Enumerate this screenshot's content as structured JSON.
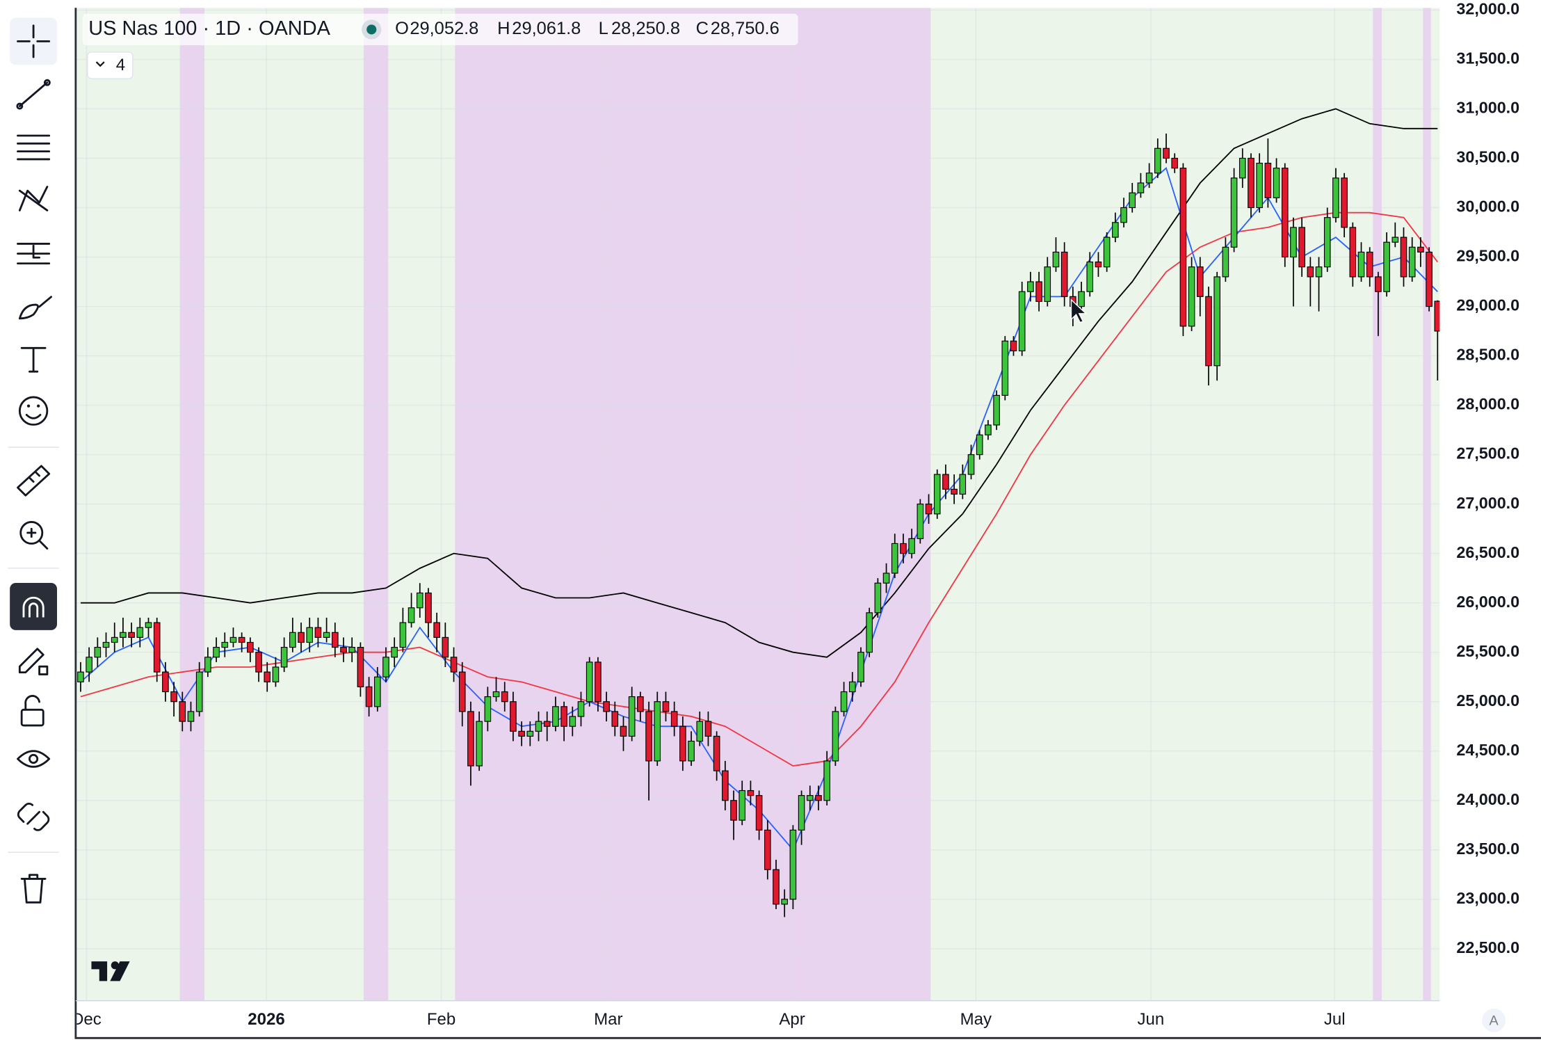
{
  "header": {
    "symbol": "US Nas 100 · 1D · OANDA",
    "open_label": "O",
    "open": "29,052.8",
    "high_label": "H",
    "high": "29,061.8",
    "low_label": "L",
    "low": "28,250.8",
    "close_label": "C",
    "close": "28,750.6",
    "indicators_count": "4"
  },
  "chart_data": {
    "type": "candlestick",
    "candles": [
      [
        25200,
        25400,
        25100,
        25300
      ],
      [
        25300,
        25550,
        25200,
        25450
      ],
      [
        25450,
        25650,
        25350,
        25550
      ],
      [
        25550,
        25700,
        25450,
        25600
      ],
      [
        25600,
        25800,
        25500,
        25650
      ],
      [
        25650,
        25850,
        25550,
        25700
      ],
      [
        25700,
        25800,
        25550,
        25650
      ],
      [
        25650,
        25850,
        25550,
        25750
      ],
      [
        25750,
        25850,
        25650,
        25800
      ],
      [
        25800,
        25850,
        25200,
        25300
      ],
      [
        25300,
        25400,
        25000,
        25100
      ],
      [
        25100,
        25200,
        24850,
        25000
      ],
      [
        25000,
        25100,
        24700,
        24800
      ],
      [
        24800,
        25000,
        24700,
        24900
      ],
      [
        24900,
        25400,
        24850,
        25300
      ],
      [
        25300,
        25550,
        25250,
        25450
      ],
      [
        25450,
        25650,
        25400,
        25550
      ],
      [
        25550,
        25700,
        25450,
        25600
      ],
      [
        25600,
        25750,
        25550,
        25650
      ],
      [
        25650,
        25700,
        25500,
        25600
      ],
      [
        25600,
        25650,
        25400,
        25500
      ],
      [
        25500,
        25550,
        25200,
        25300
      ],
      [
        25300,
        25400,
        25100,
        25200
      ],
      [
        25200,
        25450,
        25150,
        25350
      ],
      [
        25350,
        25650,
        25300,
        25550
      ],
      [
        25550,
        25850,
        25500,
        25700
      ],
      [
        25700,
        25800,
        25500,
        25600
      ],
      [
        25600,
        25850,
        25500,
        25750
      ],
      [
        25750,
        25850,
        25550,
        25650
      ],
      [
        25650,
        25850,
        25600,
        25700
      ],
      [
        25700,
        25800,
        25450,
        25550
      ],
      [
        25550,
        25650,
        25400,
        25500
      ],
      [
        25500,
        25650,
        25400,
        25550
      ],
      [
        25550,
        25600,
        25050,
        25150
      ],
      [
        25150,
        25250,
        24850,
        24950
      ],
      [
        24950,
        25350,
        24900,
        25250
      ],
      [
        25250,
        25550,
        25200,
        25450
      ],
      [
        25450,
        25650,
        25350,
        25550
      ],
      [
        25550,
        25950,
        25500,
        25800
      ],
      [
        25800,
        26100,
        25750,
        25950
      ],
      [
        25950,
        26200,
        25850,
        26100
      ],
      [
        26100,
        26150,
        25650,
        25800
      ],
      [
        25800,
        25900,
        25500,
        25650
      ],
      [
        25650,
        25800,
        25350,
        25450
      ],
      [
        25450,
        25550,
        25200,
        25300
      ],
      [
        25300,
        25400,
        24750,
        24900
      ],
      [
        24900,
        25000,
        24150,
        24350
      ],
      [
        24350,
        24900,
        24300,
        24800
      ],
      [
        24800,
        25150,
        24700,
        25050
      ],
      [
        25050,
        25250,
        25000,
        25100
      ],
      [
        25100,
        25200,
        24900,
        25000
      ],
      [
        25000,
        25100,
        24600,
        24700
      ],
      [
        24700,
        24800,
        24550,
        24650
      ],
      [
        24650,
        24800,
        24550,
        24700
      ],
      [
        24700,
        24900,
        24600,
        24800
      ],
      [
        24800,
        24900,
        24600,
        24750
      ],
      [
        24750,
        25050,
        24700,
        24950
      ],
      [
        24950,
        25000,
        24600,
        24750
      ],
      [
        24750,
        24950,
        24650,
        24850
      ],
      [
        24850,
        25100,
        24750,
        25000
      ],
      [
        25000,
        25450,
        24950,
        25400
      ],
      [
        25400,
        25450,
        24900,
        25000
      ],
      [
        25000,
        25100,
        24800,
        24900
      ],
      [
        24900,
        25000,
        24650,
        24750
      ],
      [
        24750,
        24850,
        24500,
        24650
      ],
      [
        24650,
        25150,
        24600,
        25050
      ],
      [
        25050,
        25100,
        24800,
        24900
      ],
      [
        24900,
        25000,
        24000,
        24400
      ],
      [
        24400,
        25100,
        24350,
        25000
      ],
      [
        25000,
        25100,
        24800,
        24900
      ],
      [
        24900,
        25000,
        24650,
        24750
      ],
      [
        24750,
        24850,
        24300,
        24400
      ],
      [
        24400,
        24700,
        24350,
        24600
      ],
      [
        24600,
        24900,
        24550,
        24800
      ],
      [
        24800,
        24900,
        24550,
        24650
      ],
      [
        24650,
        24700,
        24200,
        24300
      ],
      [
        24300,
        24400,
        23900,
        24000
      ],
      [
        24000,
        24100,
        23600,
        23800
      ],
      [
        23800,
        24200,
        23750,
        24100
      ],
      [
        24100,
        24200,
        23950,
        24050
      ],
      [
        24050,
        24100,
        23600,
        23700
      ],
      [
        23700,
        23800,
        23200,
        23300
      ],
      [
        23300,
        23400,
        22900,
        22950
      ],
      [
        22950,
        23100,
        22820,
        23000
      ],
      [
        23000,
        23750,
        22900,
        23700
      ],
      [
        23700,
        24100,
        23550,
        24050
      ],
      [
        24000,
        24150,
        23900,
        24050
      ],
      [
        24050,
        24150,
        23900,
        24000
      ],
      [
        24000,
        24500,
        23950,
        24400
      ],
      [
        24400,
        24950,
        24350,
        24900
      ],
      [
        24900,
        25200,
        24850,
        25100
      ],
      [
        25100,
        25300,
        25000,
        25200
      ],
      [
        25200,
        25550,
        25150,
        25500
      ],
      [
        25500,
        25950,
        25450,
        25900
      ],
      [
        25900,
        26250,
        25850,
        26200
      ],
      [
        26200,
        26400,
        26100,
        26300
      ],
      [
        26300,
        26700,
        26250,
        26600
      ],
      [
        26600,
        26700,
        26400,
        26500
      ],
      [
        26500,
        26750,
        26450,
        26650
      ],
      [
        26650,
        27050,
        26600,
        27000
      ],
      [
        27000,
        27100,
        26800,
        26900
      ],
      [
        26900,
        27350,
        26850,
        27300
      ],
      [
        27300,
        27400,
        27050,
        27150
      ],
      [
        27150,
        27300,
        27000,
        27100
      ],
      [
        27100,
        27400,
        27050,
        27300
      ],
      [
        27300,
        27600,
        27250,
        27500
      ],
      [
        27500,
        27750,
        27450,
        27700
      ],
      [
        27700,
        27850,
        27650,
        27800
      ],
      [
        27800,
        28150,
        27750,
        28100
      ],
      [
        28100,
        28700,
        28050,
        28650
      ],
      [
        28650,
        28700,
        28500,
        28550
      ],
      [
        28550,
        29250,
        28500,
        29150
      ],
      [
        29150,
        29350,
        29050,
        29250
      ],
      [
        29250,
        29350,
        28950,
        29050
      ],
      [
        29050,
        29500,
        29000,
        29400
      ],
      [
        29400,
        29700,
        29350,
        29550
      ],
      [
        29550,
        29650,
        29000,
        29100
      ],
      [
        29100,
        29200,
        28800,
        29000
      ],
      [
        29000,
        29250,
        28950,
        29150
      ],
      [
        29150,
        29550,
        29100,
        29450
      ],
      [
        29450,
        29550,
        29300,
        29400
      ],
      [
        29400,
        29750,
        29350,
        29700
      ],
      [
        29700,
        29950,
        29650,
        29850
      ],
      [
        29850,
        30100,
        29800,
        30000
      ],
      [
        30000,
        30250,
        29950,
        30150
      ],
      [
        30150,
        30350,
        30100,
        30250
      ],
      [
        30250,
        30450,
        30200,
        30350
      ],
      [
        30350,
        30700,
        30300,
        30600
      ],
      [
        30600,
        30750,
        30450,
        30500
      ],
      [
        30500,
        30550,
        30350,
        30400
      ],
      [
        30400,
        30450,
        28700,
        28800
      ],
      [
        28800,
        29500,
        28750,
        29400
      ],
      [
        29400,
        29500,
        28900,
        29100
      ],
      [
        29100,
        29200,
        28200,
        28400
      ],
      [
        28400,
        29350,
        28250,
        29300
      ],
      [
        29300,
        29700,
        29250,
        29600
      ],
      [
        29600,
        30400,
        29550,
        30300
      ],
      [
        30300,
        30600,
        30200,
        30500
      ],
      [
        30500,
        30550,
        29900,
        30000
      ],
      [
        30000,
        30550,
        29950,
        30450
      ],
      [
        30450,
        30700,
        30000,
        30100
      ],
      [
        30100,
        30500,
        30050,
        30400
      ],
      [
        30400,
        30450,
        29400,
        29500
      ],
      [
        29500,
        29900,
        29000,
        29800
      ],
      [
        29800,
        29900,
        29300,
        29400
      ],
      [
        29400,
        29500,
        29000,
        29300
      ],
      [
        29300,
        29500,
        28950,
        29400
      ],
      [
        29400,
        30000,
        29350,
        29900
      ],
      [
        29900,
        30400,
        29850,
        30300
      ],
      [
        30300,
        30350,
        29700,
        29800
      ],
      [
        29800,
        29850,
        29200,
        29300
      ],
      [
        29300,
        29650,
        29250,
        29550
      ],
      [
        29550,
        29600,
        29200,
        29300
      ],
      [
        29300,
        29350,
        28700,
        29150
      ],
      [
        29150,
        29750,
        29100,
        29650
      ],
      [
        29650,
        29850,
        29600,
        29700
      ],
      [
        29700,
        29800,
        29200,
        29300
      ],
      [
        29300,
        29700,
        29250,
        29600
      ],
      [
        29600,
        29700,
        29400,
        29550
      ],
      [
        29550,
        29600,
        28950,
        29000
      ],
      [
        29052.8,
        29061.8,
        28250.8,
        28750.6
      ]
    ],
    "up_color": "#3dc43d",
    "down_color": "#e0192e",
    "lines": [
      {
        "color": "#000000",
        "values": [
          26000,
          26000,
          26100,
          26100,
          26050,
          26000,
          26050,
          26100,
          26100,
          26150,
          26350,
          26500,
          26450,
          26150,
          26050,
          26050,
          26100,
          26000,
          25900,
          25800,
          25600,
          25500,
          25450,
          25700,
          26100,
          26550,
          26900,
          27400,
          27950,
          28400,
          28850,
          29250,
          29750,
          30250,
          30600,
          30750,
          30900,
          31000,
          30850,
          30800,
          30800
        ]
      },
      {
        "color": "#f23645",
        "values": [
          25050,
          25150,
          25250,
          25300,
          25350,
          25350,
          25400,
          25450,
          25500,
          25500,
          25550,
          25400,
          25250,
          25200,
          25100,
          25000,
          24950,
          24900,
          24850,
          24750,
          24550,
          24350,
          24400,
          24750,
          25200,
          25800,
          26350,
          26900,
          27500,
          28000,
          28450,
          28900,
          29350,
          29600,
          29750,
          29800,
          29900,
          29950,
          29950,
          29900,
          29450
        ]
      },
      {
        "color": "#2962ff",
        "values": [
          25200,
          25500,
          25650,
          25000,
          25500,
          25550,
          25400,
          25600,
          25550,
          25200,
          25750,
          25300,
          24950,
          24750,
          24800,
          25000,
          24850,
          24750,
          24750,
          24200,
          23900,
          23500,
          24300,
          25300,
          26300,
          26900,
          27300,
          28200,
          29100,
          29100,
          29600,
          30100,
          30400,
          29300,
          29700,
          30100,
          29500,
          29700,
          29400,
          29500,
          29150
        ]
      }
    ],
    "xlabels": [
      "Dec",
      "2026",
      "Feb",
      "Mar",
      "Apr",
      "May",
      "Jun",
      "Jul"
    ],
    "ylim": [
      21973,
      32022
    ],
    "yticks": [
      {
        "value": 22500,
        "label": "22,500.0"
      },
      {
        "value": 23000,
        "label": "23,000.0"
      },
      {
        "value": 23500,
        "label": "23,500.0"
      },
      {
        "value": 24000,
        "label": "24,000.0"
      },
      {
        "value": 24500,
        "label": "24,500.0"
      },
      {
        "value": 25000,
        "label": "25,000.0"
      },
      {
        "value": 25500,
        "label": "25,500.0"
      },
      {
        "value": 26000,
        "label": "26,000.0"
      },
      {
        "value": 26500,
        "label": "26,500.0"
      },
      {
        "value": 27000,
        "label": "27,000.0"
      },
      {
        "value": 27500,
        "label": "27,500.0"
      },
      {
        "value": 28000,
        "label": "28,000.0"
      },
      {
        "value": 28500,
        "label": "28,500.0"
      },
      {
        "value": 29000,
        "label": "29,000.0"
      },
      {
        "value": 29500,
        "label": "29,500.0"
      },
      {
        "value": 30000,
        "label": "30,000.0"
      },
      {
        "value": 30500,
        "label": "30,500.0"
      },
      {
        "value": 31000,
        "label": "31,000.0"
      },
      {
        "value": 31500,
        "label": "31,500.0"
      },
      {
        "value": 32000,
        "label": "32,000.0"
      }
    ],
    "grid": true
  },
  "footer": {
    "scale_button": "A"
  }
}
